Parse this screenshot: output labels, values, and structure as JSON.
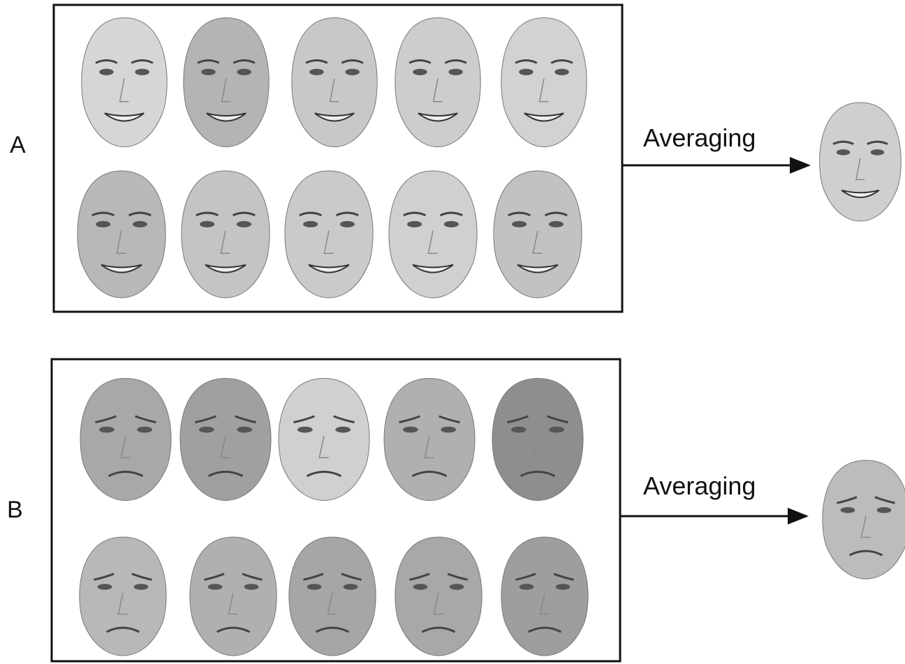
{
  "panels": [
    {
      "label": "A",
      "arrow_label": "Averaging"
    },
    {
      "label": "B",
      "arrow_label": "Averaging"
    }
  ]
}
